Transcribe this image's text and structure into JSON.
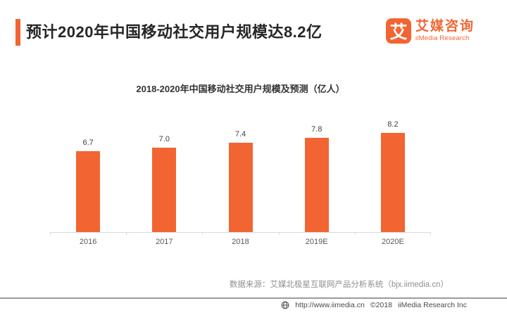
{
  "header": {
    "title": "预计2020年中国移动社交用户规模达8.2亿",
    "logo": {
      "mark": "艾",
      "name_cn": "艾媒咨询",
      "name_en": "iiMedia Research"
    }
  },
  "chart_data": {
    "type": "bar",
    "title": "2018-2020年中国移动社交用户规模及预测（亿人）",
    "categories": [
      "2016",
      "2017",
      "2018",
      "2019E",
      "2020E"
    ],
    "values": [
      6.7,
      7.0,
      7.4,
      7.8,
      8.2
    ],
    "value_labels": [
      "6.7",
      "7.0",
      "7.4",
      "7.8",
      "8.2"
    ],
    "xlabel": "",
    "ylabel": "亿人",
    "ylim": [
      0,
      10.5
    ],
    "grid": false,
    "legend": false,
    "bar_color": "#F26532",
    "axis_color": "#d9d9d9"
  },
  "source_note": "数据来源：艾媒北极星互联网产品分析系统（bjx.iimedia.cn）",
  "footer": {
    "url": "http://www.iimedia.cn",
    "copyright": "©2018",
    "company": "iiMedia Research Inc"
  },
  "colors": {
    "accent": "#F26532"
  }
}
